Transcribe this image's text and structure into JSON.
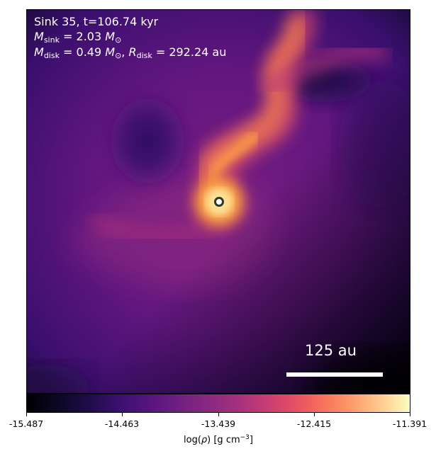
{
  "annotation": {
    "title": "Sink 35, t=106.74 kyr",
    "m_sink_symbol": "M",
    "m_sink_sub": "sink",
    "m_sink_value": "= 2.03",
    "m_disk_symbol": "M",
    "m_disk_sub": "disk",
    "m_disk_value": "= 0.49",
    "r_disk_symbol": "R",
    "r_disk_sub": "disk",
    "r_disk_value": "= 292.24 au",
    "solar_unit": "M",
    "solar_sub": "⊙"
  },
  "scale_bar": {
    "label": "125 au"
  },
  "colorbar": {
    "colormap": "inferno",
    "label_prefix": "log(",
    "label_rho": "ρ",
    "label_mid": ") [g cm",
    "label_exp": "−3",
    "label_suffix": "]",
    "ticks": [
      "-15.487",
      "-14.463",
      "-13.439",
      "-12.415",
      "-11.391"
    ]
  },
  "colors": {
    "background_dark": "#1a0b3e",
    "field_purple": "#5e1580",
    "filament_orange": "#f07a50",
    "core_yellow": "#fcfdbf",
    "marker_outline": "#2e3a25",
    "text": "#ffffff"
  }
}
